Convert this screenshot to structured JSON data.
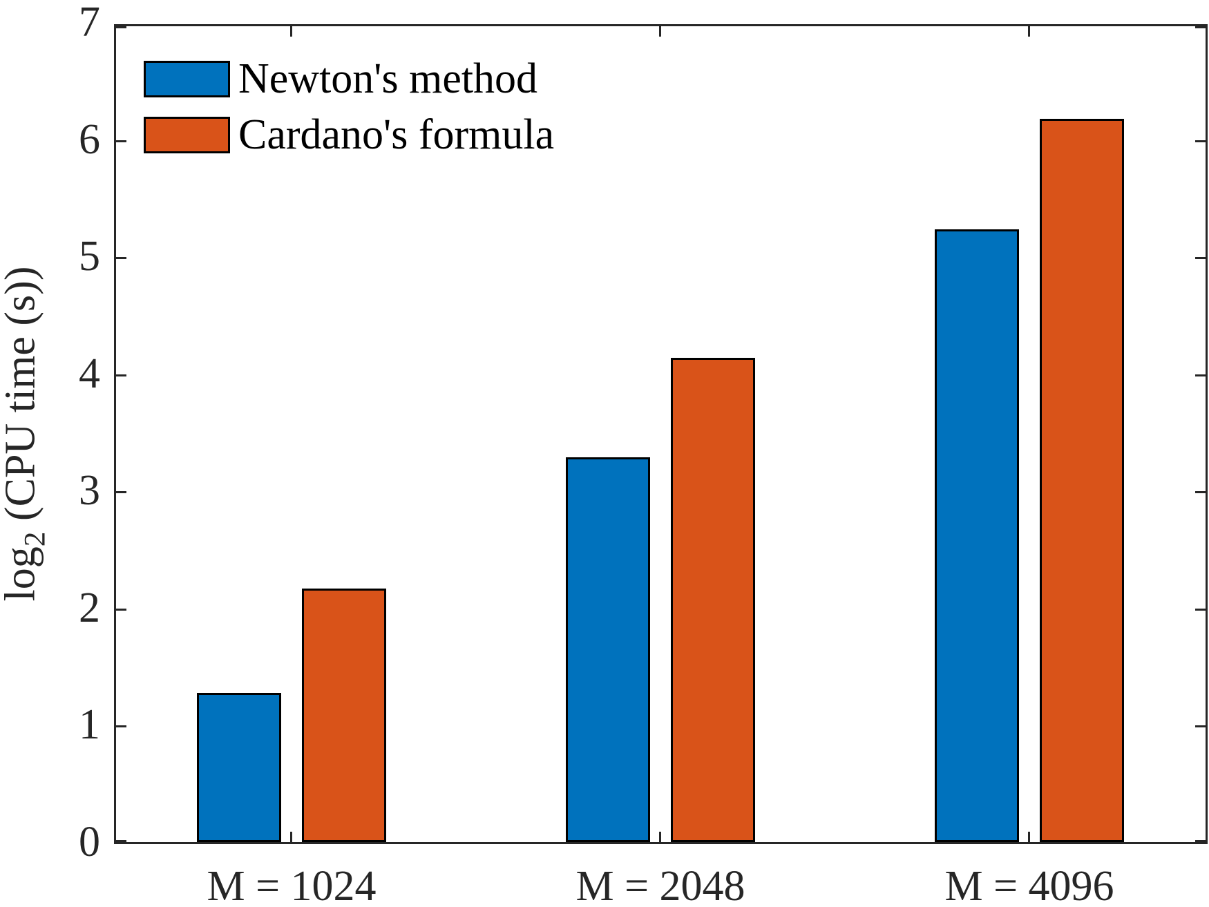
{
  "chart_data": {
    "type": "bar",
    "title": "",
    "categories": [
      "M = 1024",
      "M = 2048",
      "M = 4096"
    ],
    "series": [
      {
        "name": "Newton's method",
        "color": "#0072BD",
        "values": [
          1.29,
          3.3,
          5.25
        ]
      },
      {
        "name": "Cardano's formula",
        "color": "#D95319",
        "values": [
          2.18,
          4.15,
          6.19
        ]
      }
    ],
    "xlabel": "",
    "ylabel": {
      "prefix": "log",
      "subscript": "2",
      "rest": " (CPU time (s))"
    },
    "ylim": [
      0,
      7
    ],
    "yticks": [
      0,
      1,
      2,
      3,
      4,
      5,
      6,
      7
    ],
    "grid": false,
    "legend_position": "top-left",
    "axis_color": "#262626",
    "bar_edge_color": "#000000",
    "background_color": "#ffffff"
  }
}
